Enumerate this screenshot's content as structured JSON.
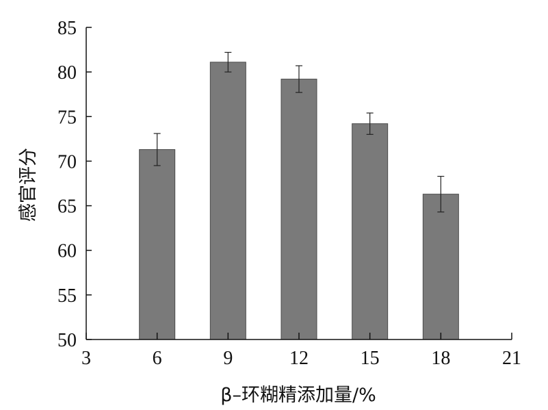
{
  "chart_data": {
    "type": "bar",
    "title": "",
    "xlabel": "β–环糊精添加量/%",
    "ylabel": "感官评分",
    "x_ticks": [
      "3",
      "6",
      "9",
      "12",
      "15",
      "18",
      "21"
    ],
    "y_ticks": [
      "50",
      "55",
      "60",
      "65",
      "70",
      "75",
      "80",
      "85"
    ],
    "xlim": [
      3,
      21
    ],
    "ylim": [
      50,
      85
    ],
    "categories": [
      "6",
      "9",
      "12",
      "15",
      "18"
    ],
    "x": [
      6,
      9,
      12,
      15,
      18
    ],
    "values": [
      71.3,
      81.1,
      79.2,
      74.2,
      66.3
    ],
    "error": [
      1.8,
      1.1,
      1.5,
      1.2,
      2.0
    ],
    "bar_color": "#7a7a7a",
    "grid": false,
    "legend": "none"
  }
}
